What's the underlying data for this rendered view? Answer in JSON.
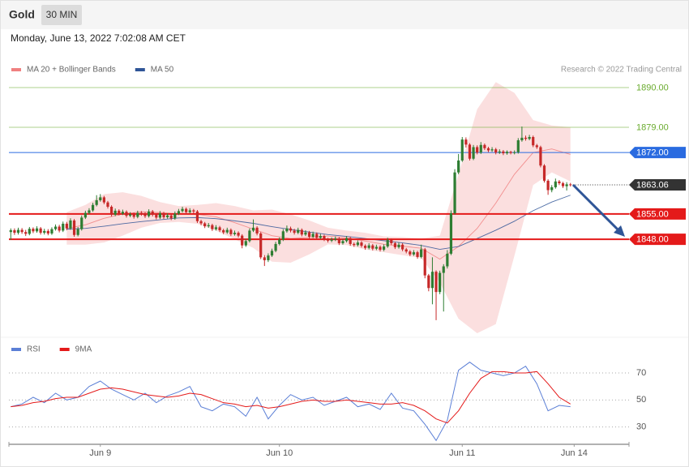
{
  "header": {
    "title": "Gold",
    "interval": "30 MIN",
    "timestamp": "Monday, June 13, 2022 7:02:08 AM CET",
    "credit": "Research © 2022 Trading Central"
  },
  "chart_data": [
    {
      "type": "candlestick",
      "xlim": [
        -0.5,
        165.7
      ],
      "ylim": [
        1821,
        1893
      ],
      "candles": {
        "up_color": "#2e7d32",
        "down_color": "#c62828",
        "open": [
          1850.0,
          1850.5,
          1849.8,
          1850.6,
          1850.0,
          1849.5,
          1850.9,
          1850.2,
          1851.0,
          1849.8,
          1850.3,
          1849.6,
          1850.8,
          1851.5,
          1850.4,
          1852.3,
          1851.0,
          1853.2,
          1849.2,
          1850.8,
          1854.0,
          1855.3,
          1856.0,
          1857.5,
          1858.8,
          1859.6,
          1858.2,
          1857.0,
          1854.8,
          1855.9,
          1855.1,
          1855.6,
          1854.5,
          1854.9,
          1854.2,
          1855.3,
          1855.0,
          1854.4,
          1855.7,
          1854.8,
          1854.0,
          1855.2,
          1854.1,
          1854.6,
          1853.8,
          1855.1,
          1855.8,
          1856.4,
          1855.5,
          1856.0,
          1855.7,
          1853.0,
          1852.4,
          1851.6,
          1851.9,
          1850.8,
          1851.3,
          1850.5,
          1849.9,
          1850.6,
          1849.4,
          1849.8,
          1849.0,
          1846.3,
          1847.5,
          1850.4,
          1851.2,
          1849.6,
          1843.0,
          1842.2,
          1843.5,
          1844.8,
          1846.7,
          1847.9,
          1850.2,
          1851.0,
          1850.4,
          1849.8,
          1850.6,
          1849.3,
          1849.9,
          1848.7,
          1849.5,
          1848.4,
          1848.9,
          1848.0,
          1847.6,
          1847.9,
          1848.2,
          1846.9,
          1847.5,
          1848.3,
          1846.7,
          1846.4,
          1847.1,
          1846.2,
          1845.6,
          1846.3,
          1845.4,
          1845.9,
          1845.1,
          1846.0,
          1847.8,
          1846.9,
          1845.8,
          1846.5,
          1845.2,
          1844.6,
          1843.8,
          1844.4,
          1843.1,
          1845.2,
          1838.0,
          1834.5,
          1839.0,
          1833.4,
          1838.7,
          1840.5,
          1844.0,
          1855.2,
          1866.5,
          1869.8,
          1875.6,
          1874.2,
          1870.3,
          1873.5,
          1872.0,
          1874.1,
          1873.2,
          1872.6,
          1872.9,
          1872.0,
          1872.3,
          1871.8,
          1872.2,
          1871.9,
          1872.1,
          1875.4,
          1876.1,
          1875.8,
          1876.3,
          1874.0,
          1873.5,
          1868.4,
          1864.2,
          1861.6,
          1862.4,
          1864.0,
          1863.5,
          1862.7,
          1863.2
        ],
        "high": [
          1851.0,
          1851.0,
          1851.2,
          1851.1,
          1850.6,
          1851.4,
          1851.3,
          1851.6,
          1851.4,
          1850.9,
          1850.8,
          1851.3,
          1852.1,
          1852.0,
          1852.9,
          1852.8,
          1853.8,
          1853.6,
          1851.4,
          1854.6,
          1855.9,
          1856.6,
          1858.1,
          1860.2,
          1860.5,
          1860.0,
          1858.6,
          1857.4,
          1856.5,
          1856.3,
          1856.2,
          1856.0,
          1855.5,
          1855.4,
          1855.9,
          1855.8,
          1855.5,
          1856.3,
          1856.1,
          1855.2,
          1855.8,
          1855.6,
          1855.2,
          1855.0,
          1855.7,
          1856.4,
          1857.0,
          1856.8,
          1856.6,
          1856.4,
          1856.1,
          1853.4,
          1852.8,
          1852.5,
          1852.3,
          1851.9,
          1851.7,
          1850.9,
          1851.2,
          1851.0,
          1850.4,
          1850.2,
          1849.4,
          1848.1,
          1851.0,
          1853.5,
          1851.6,
          1850.0,
          1843.6,
          1844.1,
          1845.4,
          1847.3,
          1848.5,
          1850.8,
          1851.8,
          1851.5,
          1850.9,
          1851.2,
          1851.0,
          1850.5,
          1850.3,
          1850.1,
          1849.9,
          1849.5,
          1849.3,
          1848.4,
          1848.5,
          1848.8,
          1848.6,
          1848.1,
          1848.9,
          1848.7,
          1847.1,
          1847.7,
          1847.5,
          1846.6,
          1846.9,
          1846.7,
          1846.5,
          1846.3,
          1846.6,
          1848.4,
          1848.2,
          1847.3,
          1847.1,
          1846.9,
          1845.6,
          1845.0,
          1845.0,
          1844.8,
          1846.5,
          1845.6,
          1838.4,
          1843.0,
          1839.4,
          1839.3,
          1841.1,
          1845.0,
          1856.0,
          1867.4,
          1871.6,
          1876.3,
          1876.2,
          1874.6,
          1874.1,
          1874.0,
          1874.9,
          1874.5,
          1873.6,
          1873.5,
          1873.3,
          1872.9,
          1872.7,
          1872.6,
          1872.5,
          1872.6,
          1876.0,
          1879.2,
          1876.7,
          1876.9,
          1876.7,
          1874.4,
          1873.9,
          1868.8,
          1864.6,
          1863.0,
          1864.8,
          1864.4,
          1863.9,
          1863.8,
          1863.6
        ],
        "low": [
          1847.8,
          1849.2,
          1849.3,
          1849.5,
          1848.9,
          1849.1,
          1849.7,
          1849.8,
          1849.3,
          1849.3,
          1849.1,
          1849.2,
          1850.4,
          1849.9,
          1850.0,
          1850.5,
          1850.6,
          1848.7,
          1848.8,
          1850.4,
          1853.6,
          1854.9,
          1855.6,
          1857.1,
          1858.4,
          1857.7,
          1856.5,
          1854.3,
          1854.4,
          1854.6,
          1854.7,
          1854.0,
          1854.1,
          1853.7,
          1853.8,
          1854.5,
          1853.9,
          1854.0,
          1854.3,
          1853.5,
          1853.6,
          1853.6,
          1853.7,
          1853.3,
          1853.4,
          1854.7,
          1855.4,
          1855.0,
          1855.1,
          1855.2,
          1852.5,
          1851.9,
          1851.1,
          1851.2,
          1850.3,
          1850.4,
          1850.0,
          1849.4,
          1849.5,
          1848.9,
          1849.0,
          1848.5,
          1845.5,
          1845.9,
          1847.1,
          1850.0,
          1849.1,
          1842.5,
          1840.6,
          1841.7,
          1843.1,
          1844.4,
          1846.3,
          1847.5,
          1849.8,
          1849.9,
          1849.3,
          1849.4,
          1848.8,
          1848.9,
          1848.2,
          1848.3,
          1847.9,
          1848.0,
          1847.5,
          1847.1,
          1847.2,
          1847.5,
          1846.4,
          1846.5,
          1847.1,
          1846.2,
          1845.9,
          1846.0,
          1845.7,
          1845.1,
          1845.2,
          1844.9,
          1845.0,
          1844.6,
          1844.7,
          1845.6,
          1846.4,
          1845.3,
          1845.4,
          1844.7,
          1844.1,
          1843.3,
          1843.4,
          1842.6,
          1842.7,
          1837.2,
          1833.6,
          1830.0,
          1825.6,
          1832.8,
          1828.0,
          1839.9,
          1843.6,
          1854.8,
          1866.0,
          1869.4,
          1873.4,
          1869.8,
          1869.9,
          1871.5,
          1871.6,
          1872.7,
          1872.1,
          1872.2,
          1871.5,
          1871.6,
          1871.3,
          1871.4,
          1871.5,
          1871.5,
          1871.7,
          1875.0,
          1875.3,
          1875.4,
          1873.5,
          1873.0,
          1867.9,
          1863.7,
          1860.3,
          1861.0,
          1862.0,
          1863.0,
          1862.2,
          1861.5,
          1862.6
        ],
        "close": [
          1850.5,
          1849.8,
          1850.6,
          1850.0,
          1849.5,
          1850.9,
          1850.2,
          1851.0,
          1849.8,
          1850.3,
          1849.6,
          1850.8,
          1851.5,
          1850.4,
          1852.3,
          1851.0,
          1853.2,
          1849.2,
          1850.8,
          1854.0,
          1855.3,
          1856.0,
          1857.5,
          1858.8,
          1859.6,
          1858.2,
          1857.0,
          1854.8,
          1855.9,
          1855.1,
          1855.6,
          1854.5,
          1854.9,
          1854.2,
          1855.3,
          1855.0,
          1854.4,
          1855.7,
          1854.8,
          1854.0,
          1855.2,
          1854.1,
          1854.6,
          1853.8,
          1855.1,
          1855.8,
          1856.4,
          1855.5,
          1856.0,
          1855.7,
          1853.0,
          1852.4,
          1851.6,
          1851.9,
          1850.8,
          1851.3,
          1850.5,
          1849.9,
          1850.6,
          1849.4,
          1849.8,
          1849.0,
          1846.3,
          1847.5,
          1850.4,
          1851.2,
          1849.6,
          1843.0,
          1842.2,
          1843.5,
          1844.8,
          1846.7,
          1847.9,
          1850.2,
          1851.0,
          1850.4,
          1849.8,
          1850.6,
          1849.3,
          1849.9,
          1848.7,
          1849.5,
          1848.4,
          1848.9,
          1848.0,
          1847.6,
          1847.9,
          1848.2,
          1846.9,
          1847.5,
          1848.3,
          1846.7,
          1846.4,
          1847.1,
          1846.2,
          1845.6,
          1846.3,
          1845.4,
          1845.9,
          1845.1,
          1846.0,
          1847.8,
          1846.9,
          1845.8,
          1846.5,
          1845.2,
          1844.6,
          1843.8,
          1844.4,
          1843.1,
          1845.2,
          1838.0,
          1834.5,
          1839.0,
          1833.4,
          1838.7,
          1840.5,
          1844.0,
          1855.2,
          1866.5,
          1869.8,
          1875.6,
          1874.2,
          1870.3,
          1873.5,
          1872.0,
          1874.1,
          1873.2,
          1872.6,
          1872.9,
          1872.0,
          1872.3,
          1871.8,
          1872.2,
          1871.9,
          1872.1,
          1875.4,
          1876.1,
          1875.8,
          1876.3,
          1874.0,
          1873.5,
          1868.4,
          1864.2,
          1861.6,
          1862.4,
          1864.0,
          1863.5,
          1862.7,
          1863.2,
          1863.06
        ]
      },
      "series": [
        {
          "name": "MA 20 + Bollinger Bands",
          "color": "#f08080",
          "x": [
            15,
            20,
            25,
            30,
            35,
            40,
            45,
            50,
            55,
            60,
            65,
            70,
            75,
            80,
            85,
            90,
            95,
            100,
            105,
            110,
            115,
            120,
            125,
            130,
            135,
            140,
            145,
            150
          ],
          "values": [
            1851.0,
            1852.0,
            1853.8,
            1855.0,
            1855.6,
            1855.4,
            1855.0,
            1854.9,
            1854.2,
            1852.6,
            1850.8,
            1849.0,
            1848.2,
            1848.5,
            1848.9,
            1848.4,
            1847.5,
            1846.6,
            1846.1,
            1845.5,
            1842.5,
            1846.0,
            1851.0,
            1858.0,
            1866.0,
            1872.0,
            1873.0,
            1871.5
          ],
          "upper": [
            1855.5,
            1857.5,
            1860.5,
            1861.0,
            1860.0,
            1858.3,
            1857.2,
            1857.5,
            1858.0,
            1857.2,
            1856.0,
            1856.2,
            1854.9,
            1853.2,
            1851.2,
            1850.4,
            1849.8,
            1848.8,
            1848.6,
            1848.2,
            1849.0,
            1866.0,
            1884.0,
            1891.5,
            1888.5,
            1881.0,
            1879.5,
            1879.0
          ],
          "lower": [
            1846.5,
            1846.5,
            1847.1,
            1849.0,
            1851.2,
            1852.5,
            1852.8,
            1852.3,
            1850.4,
            1848.0,
            1845.6,
            1841.8,
            1841.5,
            1843.8,
            1846.6,
            1846.4,
            1845.2,
            1844.4,
            1843.6,
            1842.8,
            1836.0,
            1826.0,
            1822.0,
            1824.5,
            1843.5,
            1863.0,
            1866.5,
            1864.0
          ]
        },
        {
          "name": "MA 50",
          "color": "#2f5597",
          "x": [
            15,
            20,
            25,
            30,
            35,
            40,
            45,
            50,
            55,
            60,
            65,
            70,
            75,
            80,
            85,
            90,
            95,
            100,
            105,
            110,
            115,
            120,
            125,
            130,
            135,
            140,
            145,
            150
          ],
          "values": [
            1850.8,
            1851.0,
            1851.6,
            1852.3,
            1852.9,
            1853.4,
            1853.9,
            1854.0,
            1853.7,
            1853.1,
            1852.4,
            1851.5,
            1850.7,
            1850.0,
            1849.3,
            1848.8,
            1848.2,
            1847.6,
            1847.0,
            1846.3,
            1845.2,
            1846.0,
            1848.2,
            1850.5,
            1853.0,
            1855.9,
            1858.3,
            1860.2
          ]
        }
      ],
      "levels": [
        {
          "value": 1890,
          "label": "1890.00",
          "color": "#6aab2e",
          "label_style": "text",
          "line_width": 1
        },
        {
          "value": 1879,
          "label": "1879.00",
          "color": "#6aab2e",
          "label_style": "text",
          "line_width": 1
        },
        {
          "value": 1872,
          "label": "1872.00",
          "color": "#2a6be0",
          "label_style": "box",
          "line_width": 1
        },
        {
          "value": 1855,
          "label": "1855.00",
          "color": "#e41a1a",
          "label_style": "box",
          "line_width": 2
        },
        {
          "value": 1848,
          "label": "1848.00",
          "color": "#e41a1a",
          "label_style": "box",
          "line_width": 2
        }
      ],
      "last_price": {
        "value": 1863.06,
        "label": "1863.06",
        "color": "#333333"
      }
    },
    {
      "type": "line",
      "xlim": [
        -0.5,
        165.7
      ],
      "ylim": [
        19,
        94
      ],
      "yticks": [
        30,
        50,
        70
      ],
      "xticks": [
        {
          "value": 24,
          "label": "Jun 9"
        },
        {
          "value": 72,
          "label": "Jun 10"
        },
        {
          "value": 121,
          "label": "Jun 11"
        },
        {
          "value": 151,
          "label": "Jun 14"
        }
      ],
      "x": [
        0,
        3,
        6,
        9,
        12,
        15,
        18,
        21,
        24,
        27,
        30,
        33,
        36,
        39,
        42,
        45,
        48,
        51,
        54,
        57,
        60,
        63,
        66,
        69,
        72,
        75,
        78,
        81,
        84,
        87,
        90,
        93,
        96,
        99,
        102,
        105,
        108,
        111,
        114,
        117,
        120,
        123,
        126,
        129,
        132,
        135,
        138,
        141,
        144,
        147,
        150
      ],
      "series": [
        {
          "name": "RSI",
          "color": "#5b7fd6",
          "values": [
            45,
            47,
            52,
            48,
            55,
            50,
            52,
            60,
            64,
            58,
            54,
            50,
            55,
            48,
            53,
            56,
            60,
            45,
            42,
            47,
            45,
            38,
            52,
            36,
            46,
            54,
            50,
            52,
            46,
            49,
            52,
            45,
            47,
            43,
            55,
            44,
            42,
            32,
            20,
            35,
            72,
            78,
            72,
            70,
            68,
            70,
            75,
            62,
            42,
            46,
            45
          ]
        },
        {
          "name": "9MA",
          "color": "#e41a1a",
          "values": [
            45,
            46,
            48,
            49,
            51,
            52,
            52,
            55,
            58,
            59,
            58,
            56,
            54,
            53,
            52,
            53,
            55,
            54,
            51,
            48,
            47,
            45,
            46,
            44,
            45,
            47,
            49,
            50,
            49,
            49,
            50,
            49,
            48,
            47,
            47,
            48,
            46,
            42,
            36,
            33,
            42,
            55,
            66,
            71,
            71,
            70,
            70,
            71,
            62,
            52,
            47
          ]
        }
      ]
    }
  ]
}
